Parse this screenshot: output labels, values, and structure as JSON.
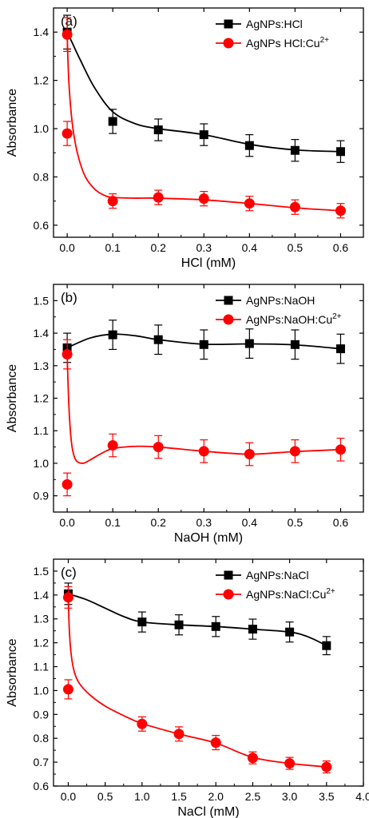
{
  "chart_data": [
    {
      "type": "line",
      "panel_label": "(a)",
      "xlabel": "HCl (mM)",
      "ylabel": "Absorbance",
      "xlim": [
        -0.03,
        0.65
      ],
      "ylim": [
        0.55,
        1.5
      ],
      "xticks": [
        0.0,
        0.1,
        0.2,
        0.3,
        0.4,
        0.5,
        0.6
      ],
      "xtick_labels": [
        "0.0",
        "0.1",
        "0.2",
        "0.3",
        "0.4",
        "0.5",
        "0.6"
      ],
      "yticks": [
        0.6,
        0.8,
        1.0,
        1.2,
        1.4
      ],
      "ytick_labels": [
        "0.6",
        "0.8",
        "1.0",
        "1.2",
        "1.4"
      ],
      "legend_position": "top-right",
      "series": [
        {
          "name": "AgNPs:HCl",
          "color": "#000000",
          "marker": "square",
          "points": [
            {
              "x": 0.0,
              "y": 1.4,
              "err": 0.07
            },
            {
              "x": 0.1,
              "y": 1.03,
              "err": 0.05
            },
            {
              "x": 0.2,
              "y": 0.995,
              "err": 0.045
            },
            {
              "x": 0.3,
              "y": 0.975,
              "err": 0.045
            },
            {
              "x": 0.4,
              "y": 0.93,
              "err": 0.045
            },
            {
              "x": 0.5,
              "y": 0.91,
              "err": 0.045
            },
            {
              "x": 0.6,
              "y": 0.905,
              "err": 0.045
            }
          ],
          "curve": [
            [
              0.0,
              1.4
            ],
            [
              0.01,
              1.36
            ],
            [
              0.03,
              1.28
            ],
            [
              0.06,
              1.17
            ],
            [
              0.1,
              1.07
            ],
            [
              0.15,
              1.02
            ],
            [
              0.2,
              1.0
            ],
            [
              0.3,
              0.975
            ],
            [
              0.4,
              0.935
            ],
            [
              0.5,
              0.912
            ],
            [
              0.6,
              0.905
            ]
          ]
        },
        {
          "name": "AgNPs HCl:Cu2+",
          "name_prefix": "AgNPs HCl:Cu",
          "name_superscript": "2+",
          "color": "#ff0000",
          "marker": "circle",
          "points": [
            {
              "x": 0.0,
              "y": 1.39,
              "err": 0.07
            },
            {
              "x": 0.0,
              "y": 0.98,
              "err": 0.05
            },
            {
              "x": 0.1,
              "y": 0.7,
              "err": 0.03
            },
            {
              "x": 0.2,
              "y": 0.715,
              "err": 0.03
            },
            {
              "x": 0.3,
              "y": 0.71,
              "err": 0.03
            },
            {
              "x": 0.4,
              "y": 0.69,
              "err": 0.03
            },
            {
              "x": 0.5,
              "y": 0.675,
              "err": 0.03
            },
            {
              "x": 0.6,
              "y": 0.66,
              "err": 0.03
            }
          ],
          "curve": [
            [
              0.0,
              1.39
            ],
            [
              0.003,
              1.22
            ],
            [
              0.008,
              1.08
            ],
            [
              0.015,
              0.97
            ],
            [
              0.025,
              0.88
            ],
            [
              0.04,
              0.8
            ],
            [
              0.06,
              0.75
            ],
            [
              0.08,
              0.725
            ],
            [
              0.1,
              0.715
            ],
            [
              0.15,
              0.712
            ],
            [
              0.2,
              0.712
            ],
            [
              0.3,
              0.705
            ],
            [
              0.4,
              0.69
            ],
            [
              0.5,
              0.672
            ],
            [
              0.6,
              0.66
            ]
          ]
        }
      ]
    },
    {
      "type": "line",
      "panel_label": "(b)",
      "xlabel": "NaOH (mM)",
      "ylabel": "Absorbance",
      "xlim": [
        -0.03,
        0.65
      ],
      "ylim": [
        0.85,
        1.55
      ],
      "xticks": [
        0.0,
        0.1,
        0.2,
        0.3,
        0.4,
        0.5,
        0.6
      ],
      "xtick_labels": [
        "0.0",
        "0.1",
        "0.2",
        "0.3",
        "0.4",
        "0.5",
        "0.6"
      ],
      "yticks": [
        0.9,
        1.0,
        1.1,
        1.2,
        1.3,
        1.4,
        1.5
      ],
      "ytick_labels": [
        "0.9",
        "1.0",
        "1.1",
        "1.2",
        "1.3",
        "1.4",
        "1.5"
      ],
      "legend_position": "top-right",
      "series": [
        {
          "name": "AgNPs:NaOH",
          "color": "#000000",
          "marker": "square",
          "points": [
            {
              "x": 0.0,
              "y": 1.355,
              "err": 0.045
            },
            {
              "x": 0.1,
              "y": 1.395,
              "err": 0.045
            },
            {
              "x": 0.2,
              "y": 1.38,
              "err": 0.045
            },
            {
              "x": 0.3,
              "y": 1.365,
              "err": 0.045
            },
            {
              "x": 0.4,
              "y": 1.368,
              "err": 0.045
            },
            {
              "x": 0.5,
              "y": 1.365,
              "err": 0.045
            },
            {
              "x": 0.6,
              "y": 1.352,
              "err": 0.045
            }
          ],
          "curve": [
            [
              0.0,
              1.355
            ],
            [
              0.05,
              1.385
            ],
            [
              0.1,
              1.397
            ],
            [
              0.15,
              1.392
            ],
            [
              0.2,
              1.38
            ],
            [
              0.3,
              1.366
            ],
            [
              0.4,
              1.367
            ],
            [
              0.5,
              1.364
            ],
            [
              0.6,
              1.352
            ]
          ]
        },
        {
          "name": "AgNPs:NaOH:Cu2+",
          "name_prefix": "AgNPs:NaOH:Cu",
          "name_superscript": "2+",
          "color": "#ff0000",
          "marker": "circle",
          "points": [
            {
              "x": 0.0,
              "y": 1.335,
              "err": 0.045
            },
            {
              "x": 0.0,
              "y": 0.935,
              "err": 0.035
            },
            {
              "x": 0.1,
              "y": 1.055,
              "err": 0.035
            },
            {
              "x": 0.2,
              "y": 1.05,
              "err": 0.035
            },
            {
              "x": 0.3,
              "y": 1.037,
              "err": 0.035
            },
            {
              "x": 0.4,
              "y": 1.028,
              "err": 0.035
            },
            {
              "x": 0.5,
              "y": 1.037,
              "err": 0.035
            },
            {
              "x": 0.6,
              "y": 1.042,
              "err": 0.035
            }
          ],
          "curve": [
            [
              0.0,
              1.335
            ],
            [
              0.003,
              1.2
            ],
            [
              0.007,
              1.1
            ],
            [
              0.012,
              1.04
            ],
            [
              0.02,
              1.008
            ],
            [
              0.035,
              1.0
            ],
            [
              0.05,
              1.01
            ],
            [
              0.075,
              1.03
            ],
            [
              0.1,
              1.045
            ],
            [
              0.15,
              1.052
            ],
            [
              0.2,
              1.05
            ],
            [
              0.3,
              1.037
            ],
            [
              0.4,
              1.028
            ],
            [
              0.5,
              1.036
            ],
            [
              0.6,
              1.042
            ]
          ]
        }
      ]
    },
    {
      "type": "line",
      "panel_label": "(c)",
      "xlabel": "NaCl (mM)",
      "ylabel": "Absorbance",
      "xlim": [
        -0.2,
        4.0
      ],
      "ylim": [
        0.6,
        1.55
      ],
      "xticks": [
        0.0,
        0.5,
        1.0,
        1.5,
        2.0,
        2.5,
        3.0,
        3.5,
        4.0
      ],
      "xtick_labels": [
        "0.0",
        "0.5",
        "1.0",
        "1.5",
        "2.0",
        "2.5",
        "3.0",
        "3.5",
        "4.0"
      ],
      "yticks": [
        0.6,
        0.7,
        0.8,
        0.9,
        1.0,
        1.1,
        1.2,
        1.3,
        1.4,
        1.5
      ],
      "ytick_labels": [
        "0.6",
        "0.7",
        "0.8",
        "0.9",
        "1.0",
        "1.1",
        "1.2",
        "1.3",
        "1.4",
        "1.5"
      ],
      "legend_position": "top-right",
      "series": [
        {
          "name": "AgNPs:NaCl",
          "color": "#000000",
          "marker": "square",
          "points": [
            {
              "x": 0.0,
              "y": 1.405,
              "err": 0.045
            },
            {
              "x": 1.0,
              "y": 1.287,
              "err": 0.042
            },
            {
              "x": 1.5,
              "y": 1.275,
              "err": 0.042
            },
            {
              "x": 2.0,
              "y": 1.268,
              "err": 0.042
            },
            {
              "x": 2.5,
              "y": 1.257,
              "err": 0.042
            },
            {
              "x": 3.0,
              "y": 1.245,
              "err": 0.042
            },
            {
              "x": 3.5,
              "y": 1.188,
              "err": 0.038
            }
          ],
          "curve": [
            [
              0.0,
              1.405
            ],
            [
              0.25,
              1.38
            ],
            [
              0.5,
              1.345
            ],
            [
              0.75,
              1.31
            ],
            [
              1.0,
              1.287
            ],
            [
              1.5,
              1.275
            ],
            [
              2.0,
              1.268
            ],
            [
              2.5,
              1.257
            ],
            [
              3.0,
              1.245
            ],
            [
              3.25,
              1.225
            ],
            [
              3.5,
              1.188
            ]
          ]
        },
        {
          "name": "AgNPs:NaCl:Cu2+",
          "name_prefix": "AgNPs:NaCl:Cu",
          "name_superscript": "2+",
          "color": "#ff0000",
          "marker": "circle",
          "points": [
            {
              "x": 0.0,
              "y": 1.39,
              "err": 0.045
            },
            {
              "x": 0.0,
              "y": 1.005,
              "err": 0.04
            },
            {
              "x": 1.0,
              "y": 0.86,
              "err": 0.03
            },
            {
              "x": 1.5,
              "y": 0.818,
              "err": 0.03
            },
            {
              "x": 2.0,
              "y": 0.782,
              "err": 0.03
            },
            {
              "x": 2.5,
              "y": 0.718,
              "err": 0.025
            },
            {
              "x": 3.0,
              "y": 0.695,
              "err": 0.025
            },
            {
              "x": 3.5,
              "y": 0.68,
              "err": 0.025
            }
          ],
          "curve": [
            [
              0.0,
              1.39
            ],
            [
              0.015,
              1.25
            ],
            [
              0.04,
              1.15
            ],
            [
              0.08,
              1.08
            ],
            [
              0.15,
              1.03
            ],
            [
              0.3,
              0.98
            ],
            [
              0.5,
              0.935
            ],
            [
              0.75,
              0.895
            ],
            [
              1.0,
              0.862
            ],
            [
              1.5,
              0.818
            ],
            [
              2.0,
              0.78
            ],
            [
              2.5,
              0.72
            ],
            [
              3.0,
              0.695
            ],
            [
              3.5,
              0.68
            ]
          ]
        }
      ]
    }
  ]
}
